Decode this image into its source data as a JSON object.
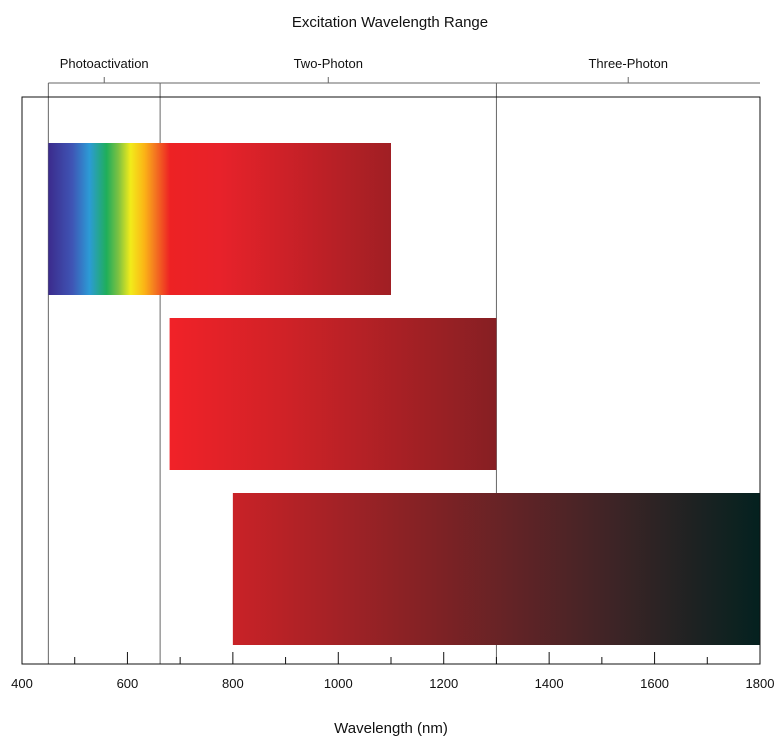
{
  "chart_data": {
    "type": "bar",
    "orientation": "horizontal-range",
    "title": "Excitation Wavelength Range",
    "xlabel": "Wavelength (nm)",
    "ylabel": "",
    "xlim": [
      400,
      1800
    ],
    "major_ticks": [
      400,
      600,
      800,
      1000,
      1200,
      1400,
      1600,
      1800
    ],
    "minor_tick_step": 100,
    "grid": false,
    "regions": [
      {
        "label": "Photoactivation",
        "start": 450,
        "end": 662
      },
      {
        "label": "Two-Photon",
        "start": 662,
        "end": 1300
      },
      {
        "label": "Three-Photon",
        "start": 1300,
        "end": 1800
      }
    ],
    "ranges": [
      {
        "start": 450,
        "end": 1100,
        "gradient": "spectrum"
      },
      {
        "start": 680,
        "end": 1300,
        "gradient": "red-darkred"
      },
      {
        "start": 800,
        "end": 1800,
        "gradient": "red-black"
      }
    ]
  },
  "colors": {
    "spectrum": [
      "#3b2b8c",
      "#3f55b5",
      "#2c9bd6",
      "#1fae5a",
      "#7fc241",
      "#f2ec1a",
      "#fbb416",
      "#f47a20",
      "#ed2224",
      "#e8222a",
      "#a01f24"
    ],
    "red_darkred": [
      "#f12228",
      "#d02227",
      "#861f23"
    ],
    "red_black": [
      "#c92227",
      "#8a2225",
      "#3e2426",
      "#04211f"
    ],
    "axis": "#111111",
    "region_line": "#666666"
  }
}
